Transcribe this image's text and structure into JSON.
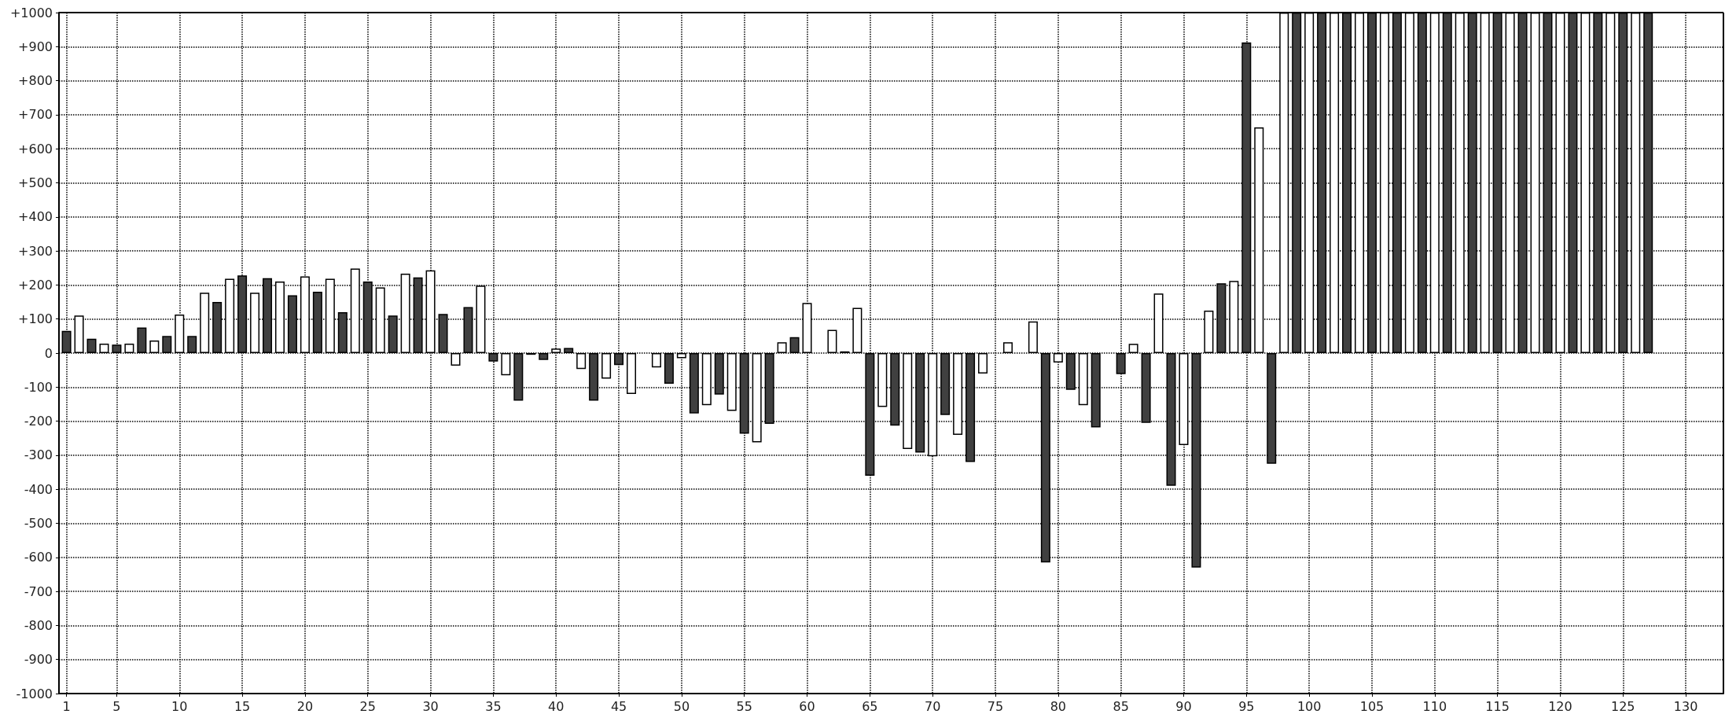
{
  "chart_data": {
    "type": "bar",
    "series": [
      {
        "color": "#404040",
        "x": [
          1,
          3,
          5,
          7,
          9,
          11,
          13,
          15,
          17,
          19,
          21,
          23,
          25,
          27,
          29,
          31,
          33,
          35,
          37,
          39,
          41,
          43,
          45,
          47,
          49,
          51,
          53,
          55,
          57,
          59,
          61,
          63,
          65,
          67,
          69,
          71,
          73,
          75,
          77,
          79,
          81,
          83,
          85,
          87,
          89,
          91,
          93,
          95,
          97,
          99,
          101,
          103,
          105,
          107,
          109,
          111,
          113,
          115,
          117,
          119,
          121,
          123,
          125,
          127
        ],
        "values": [
          65,
          42,
          25,
          75,
          50,
          50,
          150,
          228,
          220,
          170,
          180,
          120,
          210,
          110,
          222,
          115,
          135,
          -25,
          -140,
          -20,
          15,
          -140,
          -35,
          null,
          -90,
          -177,
          -122,
          -237,
          -208,
          47,
          null,
          5,
          -360,
          -213,
          -292,
          -182,
          -320,
          null,
          null,
          -615,
          -108,
          -218,
          -62,
          -205,
          -390,
          -630,
          205,
          912,
          -325,
          1000,
          1000,
          1000,
          1000,
          1000,
          1000,
          1000,
          1000,
          1000,
          1000,
          1000,
          1000,
          1000,
          1000,
          1000
        ]
      },
      {
        "color": "#ffffff",
        "x": [
          2,
          4,
          6,
          8,
          10,
          12,
          14,
          16,
          18,
          20,
          22,
          24,
          26,
          28,
          30,
          32,
          34,
          36,
          38,
          40,
          42,
          44,
          46,
          48,
          50,
          52,
          54,
          56,
          58,
          60,
          62,
          64,
          66,
          68,
          70,
          72,
          74,
          76,
          78,
          80,
          82,
          84,
          86,
          88,
          90,
          92,
          94,
          96,
          98,
          100,
          102,
          104,
          106,
          108,
          110,
          112,
          114,
          116,
          118,
          120,
          122,
          124,
          126
        ],
        "values": [
          110,
          28,
          28,
          37,
          113,
          177,
          218,
          177,
          210,
          225,
          218,
          248,
          193,
          233,
          243,
          -37,
          198,
          -65,
          -5,
          13,
          -47,
          -75,
          -120,
          -42,
          -15,
          -153,
          -170,
          -262,
          32,
          147,
          68,
          133,
          -158,
          -282,
          -303,
          -240,
          -60,
          32,
          93,
          -28,
          -153,
          null,
          27,
          175,
          -270,
          125,
          212,
          663,
          1000,
          1000,
          1000,
          1000,
          1000,
          1000,
          1000,
          1000,
          1000,
          1000,
          1000,
          1000,
          1000,
          1000,
          1000
        ]
      }
    ],
    "xlim": [
      0.4,
      133
    ],
    "xticks": [
      1,
      5,
      10,
      15,
      20,
      25,
      30,
      35,
      40,
      45,
      50,
      55,
      60,
      65,
      70,
      75,
      80,
      85,
      90,
      95,
      100,
      105,
      110,
      115,
      120,
      125,
      130
    ],
    "ylim": [
      -1000,
      1000
    ],
    "yticks": [
      {
        "value": -1000,
        "label": "-1000"
      },
      {
        "value": -900,
        "label": "-900"
      },
      {
        "value": -800,
        "label": "-800"
      },
      {
        "value": -700,
        "label": "-700"
      },
      {
        "value": -600,
        "label": "-600"
      },
      {
        "value": -500,
        "label": "-500"
      },
      {
        "value": -400,
        "label": "-400"
      },
      {
        "value": -300,
        "label": "-300"
      },
      {
        "value": -200,
        "label": "-200"
      },
      {
        "value": -100,
        "label": "-100"
      },
      0,
      {
        "value": 100,
        "label": "+100"
      },
      {
        "value": 200,
        "label": "+200"
      },
      {
        "value": 300,
        "label": "+300"
      },
      {
        "value": 400,
        "label": "+400"
      },
      {
        "value": 500,
        "label": "+500"
      },
      {
        "value": 600,
        "label": "+600"
      },
      {
        "value": 700,
        "label": "+700"
      },
      {
        "value": 800,
        "label": "+800"
      },
      {
        "value": 900,
        "label": "+900"
      },
      {
        "value": 1000,
        "label": "+1000"
      }
    ],
    "grid": true
  }
}
